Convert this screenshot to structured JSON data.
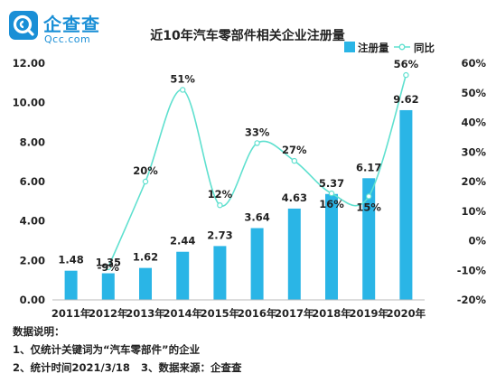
{
  "logo": {
    "cn": "企查查",
    "en": "Qcc.com"
  },
  "chart_data": {
    "type": "bar+line",
    "title": "近10年汽车零部件相关企业注册量",
    "categories": [
      "2011年",
      "2012年",
      "2013年",
      "2014年",
      "2015年",
      "2016年",
      "2017年",
      "2018年",
      "2019年",
      "2020年"
    ],
    "series": [
      {
        "name": "注册量",
        "type": "bar",
        "axis": "left",
        "values": [
          1.48,
          1.35,
          1.62,
          2.44,
          2.73,
          3.64,
          4.63,
          5.37,
          6.17,
          9.62
        ],
        "labels": [
          "1.48",
          "1.35",
          "1.62",
          "2.44",
          "2.73",
          "3.64",
          "4.63",
          "5.37",
          "6.17",
          "9.62"
        ]
      },
      {
        "name": "同比",
        "type": "line",
        "axis": "right",
        "values": [
          null,
          -9,
          20,
          51,
          12,
          33,
          27,
          16,
          15,
          56
        ],
        "labels": [
          "",
          "-9%",
          "20%",
          "51%",
          "12%",
          "33%",
          "27%",
          "16%",
          "15%",
          "56%"
        ]
      }
    ],
    "y_left": {
      "min": 0,
      "max": 12,
      "ticks": [
        "0.00",
        "2.00",
        "4.00",
        "6.00",
        "8.00",
        "10.00",
        "12.00"
      ]
    },
    "y_right": {
      "min": -20,
      "max": 60,
      "ticks": [
        "-20%",
        "-10%",
        "0%",
        "10%",
        "20%",
        "30%",
        "40%",
        "50%",
        "60%"
      ]
    },
    "legend": {
      "position": "top-right"
    },
    "grid": false,
    "colors": {
      "bar": "#2ab5e6",
      "line": "#5fe0cf"
    }
  },
  "notes": {
    "heading": "数据说明：",
    "line1": "1、仅统计关键词为“汽车零部件”的企业",
    "line2a": "2、统计时间2021/3/18",
    "line2b": "3、数据来源：企查查"
  }
}
